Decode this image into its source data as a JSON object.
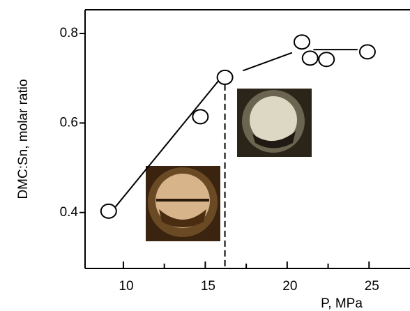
{
  "chart_data": {
    "type": "scatter",
    "xlabel": "P, MPa",
    "ylabel": "DMC:Sn, molar ratio",
    "x": [
      9.1,
      14.7,
      16.2,
      20.9,
      21.4,
      22.4,
      24.9
    ],
    "values": [
      0.403,
      0.614,
      0.702,
      0.781,
      0.745,
      0.742,
      0.759
    ],
    "lines": [
      {
        "x": [
          9.5,
          15.8
        ],
        "values": [
          0.412,
          0.694
        ]
      },
      {
        "x": [
          17.3,
          20.3
        ],
        "values": [
          0.717,
          0.757
        ]
      },
      {
        "x": [
          21.6,
          24.3
        ],
        "values": [
          0.764,
          0.764
        ]
      }
    ],
    "vline": 16.2,
    "xlim": [
      7.66,
      27.5
    ],
    "ylim": [
      0.275,
      0.853
    ],
    "xticks": [
      10,
      15,
      20,
      25
    ],
    "xminor": [
      12.5,
      17.5,
      22.5
    ],
    "yticks": [
      0.4,
      0.6,
      0.8
    ]
  }
}
